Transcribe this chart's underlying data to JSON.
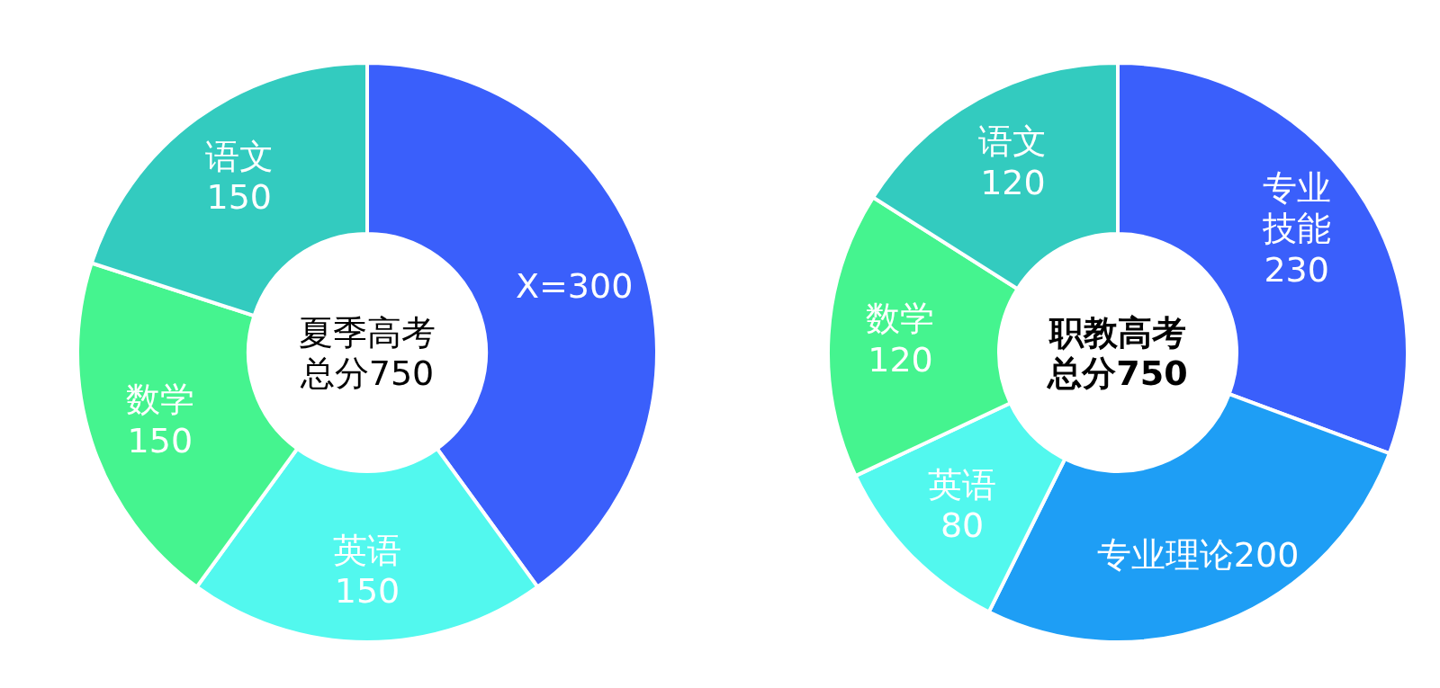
{
  "chart_data": [
    {
      "type": "donut",
      "title": "夏季高考总分750",
      "categories": [
        "X=",
        "英语",
        "数学",
        "语文"
      ],
      "values": [
        300,
        150,
        150,
        150
      ],
      "data_labels": true,
      "colors": [
        "#3a5ffb",
        "#52f8ee",
        "#45f48f",
        "#33cbbf"
      ]
    },
    {
      "type": "donut",
      "title": "职教高考总分750",
      "categories": [
        "专业技能",
        "专业理论",
        "英语",
        "数学",
        "语文"
      ],
      "values": [
        230,
        200,
        80,
        120,
        120
      ],
      "data_labels": true,
      "colors": [
        "#3a5ffb",
        "#1e9ef5",
        "#52f8ee",
        "#45f48f",
        "#33cbbf"
      ]
    }
  ]
}
